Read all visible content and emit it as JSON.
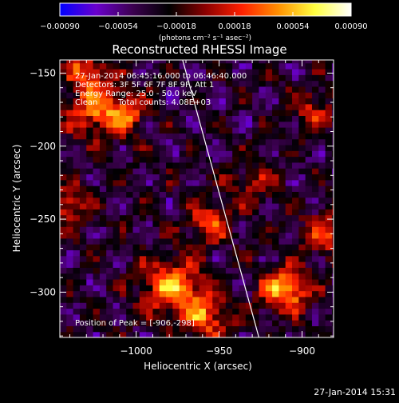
{
  "chart_data": {
    "type": "heatmap",
    "title": "Reconstructed RHESSI Image",
    "xlabel": "Heliocentric X (arcsec)",
    "ylabel": "Heliocentric Y (arcsec)",
    "xlim": [
      -1046,
      -881
    ],
    "ylim": [
      -331,
      -141
    ],
    "x_ticks": [
      -1000,
      -950,
      -900
    ],
    "x_tick_labels": [
      "−1000",
      "−950",
      "−900"
    ],
    "y_ticks": [
      -150,
      -200,
      -250,
      -300
    ],
    "y_tick_labels": [
      "−150",
      "−200",
      "−250",
      "−300"
    ],
    "colorbar": {
      "ticks": [
        -0.0009,
        -0.00054,
        -0.00018,
        0.00018,
        0.00054,
        0.0009
      ],
      "tick_labels": [
        "−0.00090",
        "−0.00054",
        "−0.00018",
        "0.00018",
        "0.00054",
        "0.00090"
      ],
      "unit": "(photons cm⁻² s⁻¹ asec⁻²)",
      "range": [
        -0.0009,
        0.0009
      ],
      "colors": [
        "#0000ff",
        "#6a00cc",
        "#3c0050",
        "#000000",
        "#8c0000",
        "#ff2000",
        "#ff9000",
        "#ffff40",
        "#ffffff"
      ]
    },
    "limb_line": {
      "x": [
        -972,
        -926
      ],
      "y": [
        -141,
        -331
      ]
    },
    "peak": {
      "x": -906,
      "y": -298
    },
    "sources": [
      {
        "x": -910,
        "y": -298,
        "amplitude": 0.00092,
        "sigma": 10
      },
      {
        "x": -1022,
        "y": -175,
        "amplitude": 0.00072,
        "sigma": 13
      },
      {
        "x": -1030,
        "y": -148,
        "amplitude": 0.00055,
        "sigma": 9
      },
      {
        "x": -978,
        "y": -296,
        "amplitude": 0.00082,
        "sigma": 13
      },
      {
        "x": -955,
        "y": -252,
        "amplitude": 0.0006,
        "sigma": 9
      },
      {
        "x": -958,
        "y": -318,
        "amplitude": 0.0006,
        "sigma": 11
      },
      {
        "x": -1040,
        "y": -240,
        "amplitude": 0.00055,
        "sigma": 9
      },
      {
        "x": -885,
        "y": -260,
        "amplitude": 0.0005,
        "sigma": 11
      },
      {
        "x": -895,
        "y": -175,
        "amplitude": 0.00045,
        "sigma": 9
      },
      {
        "x": -1004,
        "y": -178,
        "amplitude": 0.00042,
        "sigma": 8
      },
      {
        "x": -930,
        "y": -225,
        "amplitude": 0.00035,
        "sigma": 10
      }
    ],
    "background_level": -0.00034
  },
  "annotations": {
    "time_range": "27-Jan-2014 06:45:16.000 to 06:46:40.000",
    "detectors": "Detectors: 3F 5F 6F 7F 8F 9F, Att 1",
    "energy": "Energy Range: 25.0 - 50.0 keV",
    "clean_label": "Clean",
    "total_counts": "Total counts: 4.08E+03",
    "peak_position": "Position of Peak = [-906,-298]"
  },
  "footer": {
    "timestamp": "27-Jan-2014 15:31"
  }
}
